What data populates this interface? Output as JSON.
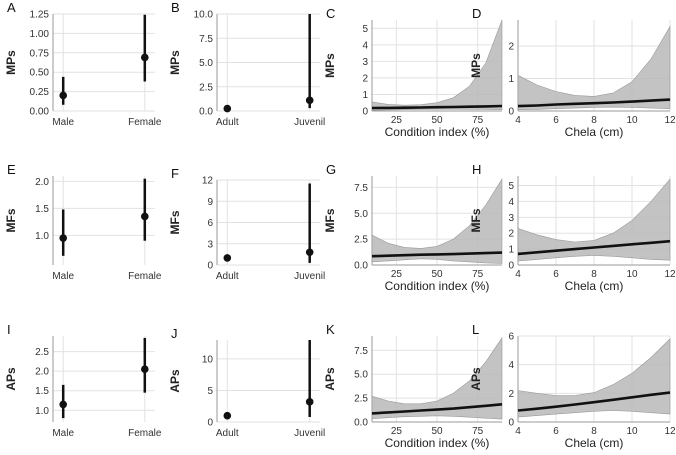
{
  "figure": {
    "row_labels": [
      "MPs",
      "MFs",
      "APs"
    ]
  },
  "chart_data": [
    {
      "id": "A",
      "type": "pointrange",
      "ylabel": "MPs",
      "xlabel": "",
      "categories": [
        "Male",
        "Female"
      ],
      "values": [
        0.2,
        0.69
      ],
      "lower": [
        0.08,
        0.38
      ],
      "upper": [
        0.44,
        1.24
      ],
      "ylim": [
        0,
        1.25
      ],
      "yticks": [
        {
          "v": 0,
          "t": "0.00"
        },
        {
          "v": 0.25,
          "t": "0.25"
        },
        {
          "v": 0.5,
          "t": "0.50"
        },
        {
          "v": 0.75,
          "t": "0.75"
        },
        {
          "v": 1.0,
          "t": "1.00"
        },
        {
          "v": 1.25,
          "t": "1.25"
        }
      ]
    },
    {
      "id": "B",
      "type": "pointrange",
      "ylabel": "MPs",
      "xlabel": "",
      "categories": [
        "Adult",
        "Juvenil"
      ],
      "values": [
        0.25,
        1.1
      ],
      "lower": [
        0.05,
        0.3
      ],
      "upper": [
        0.6,
        10.0
      ],
      "ylim": [
        0,
        10.0
      ],
      "yticks": [
        {
          "v": 0,
          "t": "0.0"
        },
        {
          "v": 2.5,
          "t": "2.5"
        },
        {
          "v": 5.0,
          "t": "5.0"
        },
        {
          "v": 7.5,
          "t": "7.5"
        },
        {
          "v": 10.0,
          "t": "10.0"
        }
      ]
    },
    {
      "id": "C",
      "type": "line",
      "ylabel": "MPs",
      "xlabel": "Condition index (%)",
      "xlim": [
        10,
        90
      ],
      "ylim": [
        0,
        5.5
      ],
      "xticks": [
        {
          "v": 25,
          "t": "25"
        },
        {
          "v": 50,
          "t": "50"
        },
        {
          "v": 75,
          "t": "75"
        }
      ],
      "yticks": [
        {
          "v": 0,
          "t": "0"
        },
        {
          "v": 1,
          "t": "1"
        },
        {
          "v": 2,
          "t": "2"
        },
        {
          "v": 3,
          "t": "3"
        },
        {
          "v": 4,
          "t": "4"
        },
        {
          "v": 5,
          "t": "5"
        }
      ],
      "x": [
        10,
        20,
        30,
        40,
        50,
        60,
        70,
        80,
        90
      ],
      "fit": [
        0.18,
        0.19,
        0.2,
        0.21,
        0.23,
        0.24,
        0.26,
        0.28,
        0.3
      ],
      "lower": [
        0.05,
        0.06,
        0.08,
        0.1,
        0.11,
        0.11,
        0.1,
        0.09,
        0.08
      ],
      "upper": [
        0.55,
        0.4,
        0.35,
        0.38,
        0.5,
        0.8,
        1.5,
        2.9,
        5.5
      ]
    },
    {
      "id": "D",
      "type": "line",
      "ylabel": "MPs",
      "xlabel": "Chela (cm)",
      "xlim": [
        4,
        12
      ],
      "ylim": [
        0,
        2.8
      ],
      "xticks": [
        {
          "v": 4,
          "t": "4"
        },
        {
          "v": 6,
          "t": "6"
        },
        {
          "v": 8,
          "t": "8"
        },
        {
          "v": 10,
          "t": "10"
        },
        {
          "v": 12,
          "t": "12"
        }
      ],
      "yticks": [
        {
          "v": 0,
          "t": "0"
        },
        {
          "v": 1,
          "t": "1"
        },
        {
          "v": 2,
          "t": "2"
        }
      ],
      "x": [
        4,
        5,
        6,
        7,
        8,
        9,
        10,
        11,
        12
      ],
      "fit": [
        0.15,
        0.17,
        0.2,
        0.22,
        0.24,
        0.26,
        0.29,
        0.32,
        0.35
      ],
      "lower": [
        0.04,
        0.05,
        0.07,
        0.09,
        0.11,
        0.12,
        0.11,
        0.09,
        0.07
      ],
      "upper": [
        1.1,
        0.8,
        0.6,
        0.48,
        0.45,
        0.55,
        0.9,
        1.6,
        2.6
      ]
    },
    {
      "id": "E",
      "type": "pointrange",
      "ylabel": "MFs",
      "xlabel": "",
      "categories": [
        "Male",
        "Female"
      ],
      "values": [
        0.95,
        1.35
      ],
      "lower": [
        0.62,
        0.9
      ],
      "upper": [
        1.48,
        2.05
      ],
      "ylim": [
        0.45,
        2.1
      ],
      "yticks": [
        {
          "v": 1.0,
          "t": "1.0"
        },
        {
          "v": 1.5,
          "t": "1.5"
        },
        {
          "v": 2.0,
          "t": "2.0"
        }
      ]
    },
    {
      "id": "F",
      "type": "pointrange",
      "ylabel": "MFs",
      "xlabel": "",
      "categories": [
        "Adult",
        "Juvenil"
      ],
      "values": [
        1.0,
        1.8
      ],
      "lower": [
        0.7,
        0.3
      ],
      "upper": [
        1.4,
        11.5
      ],
      "ylim": [
        0,
        12
      ],
      "yticks": [
        {
          "v": 0,
          "t": "0"
        },
        {
          "v": 3,
          "t": "3"
        },
        {
          "v": 6,
          "t": "6"
        },
        {
          "v": 9,
          "t": "9"
        },
        {
          "v": 12,
          "t": "12"
        }
      ]
    },
    {
      "id": "G",
      "type": "line",
      "ylabel": "MFs",
      "xlabel": "Condition index (%)",
      "xlim": [
        10,
        90
      ],
      "ylim": [
        0,
        8.6
      ],
      "xticks": [
        {
          "v": 25,
          "t": "25"
        },
        {
          "v": 50,
          "t": "50"
        },
        {
          "v": 75,
          "t": "75"
        }
      ],
      "yticks": [
        {
          "v": 0,
          "t": "0.0"
        },
        {
          "v": 2.5,
          "t": "2.5"
        },
        {
          "v": 5,
          "t": "5.0"
        },
        {
          "v": 7.5,
          "t": "7.5"
        }
      ],
      "x": [
        10,
        20,
        30,
        40,
        50,
        60,
        70,
        80,
        90
      ],
      "fit": [
        0.85,
        0.9,
        0.95,
        1.0,
        1.02,
        1.05,
        1.1,
        1.15,
        1.2
      ],
      "lower": [
        0.3,
        0.4,
        0.5,
        0.6,
        0.55,
        0.4,
        0.3,
        0.2,
        0.15
      ],
      "upper": [
        2.9,
        2.1,
        1.7,
        1.6,
        1.8,
        2.5,
        3.8,
        5.8,
        8.3
      ]
    },
    {
      "id": "H",
      "type": "line",
      "ylabel": "MFs",
      "xlabel": "Chela (cm)",
      "xlim": [
        4,
        12
      ],
      "ylim": [
        0,
        5.6
      ],
      "xticks": [
        {
          "v": 4,
          "t": "4"
        },
        {
          "v": 6,
          "t": "6"
        },
        {
          "v": 8,
          "t": "8"
        },
        {
          "v": 10,
          "t": "10"
        },
        {
          "v": 12,
          "t": "12"
        }
      ],
      "yticks": [
        {
          "v": 0,
          "t": "0"
        },
        {
          "v": 1,
          "t": "1"
        },
        {
          "v": 2,
          "t": "2"
        },
        {
          "v": 3,
          "t": "3"
        },
        {
          "v": 4,
          "t": "4"
        },
        {
          "v": 5,
          "t": "5"
        }
      ],
      "x": [
        4,
        5,
        6,
        7,
        8,
        9,
        10,
        11,
        12
      ],
      "fit": [
        0.7,
        0.8,
        0.9,
        1.0,
        1.1,
        1.2,
        1.3,
        1.4,
        1.5
      ],
      "lower": [
        0.25,
        0.35,
        0.45,
        0.55,
        0.6,
        0.55,
        0.45,
        0.35,
        0.3
      ],
      "upper": [
        2.3,
        1.9,
        1.6,
        1.45,
        1.55,
        2.0,
        2.8,
        4.0,
        5.4
      ]
    },
    {
      "id": "I",
      "type": "pointrange",
      "ylabel": "APs",
      "xlabel": "",
      "categories": [
        "Male",
        "Female"
      ],
      "values": [
        1.15,
        2.05
      ],
      "lower": [
        0.8,
        1.45
      ],
      "upper": [
        1.65,
        2.85
      ],
      "ylim": [
        0.7,
        2.9
      ],
      "yticks": [
        {
          "v": 1.0,
          "t": "1.0"
        },
        {
          "v": 1.5,
          "t": "1.5"
        },
        {
          "v": 2.0,
          "t": "2.0"
        },
        {
          "v": 2.5,
          "t": "2.5"
        }
      ]
    },
    {
      "id": "J",
      "type": "pointrange",
      "ylabel": "APs",
      "xlabel": "",
      "categories": [
        "Adult",
        "Juvenil"
      ],
      "values": [
        1.0,
        3.2
      ],
      "lower": [
        0.7,
        0.8
      ],
      "upper": [
        1.3,
        13.0
      ],
      "ylim": [
        0,
        13
      ],
      "yticks": [
        {
          "v": 0,
          "t": "0"
        },
        {
          "v": 5,
          "t": "5"
        },
        {
          "v": 10,
          "t": "10"
        }
      ]
    },
    {
      "id": "K",
      "type": "line",
      "ylabel": "APs",
      "xlabel": "Condition index (%)",
      "xlim": [
        10,
        90
      ],
      "ylim": [
        0,
        9
      ],
      "xticks": [
        {
          "v": 25,
          "t": "25"
        },
        {
          "v": 50,
          "t": "50"
        },
        {
          "v": 75,
          "t": "75"
        }
      ],
      "yticks": [
        {
          "v": 0,
          "t": "0.0"
        },
        {
          "v": 2.5,
          "t": "2.5"
        },
        {
          "v": 5,
          "t": "5.0"
        },
        {
          "v": 7.5,
          "t": "7.5"
        }
      ],
      "x": [
        10,
        20,
        30,
        40,
        50,
        60,
        70,
        80,
        90
      ],
      "fit": [
        0.9,
        1.0,
        1.1,
        1.2,
        1.3,
        1.4,
        1.55,
        1.7,
        1.85
      ],
      "lower": [
        0.35,
        0.45,
        0.55,
        0.6,
        0.65,
        0.6,
        0.5,
        0.4,
        0.3
      ],
      "upper": [
        2.7,
        2.2,
        1.9,
        1.9,
        2.2,
        3.0,
        4.3,
        6.3,
        8.8
      ]
    },
    {
      "id": "L",
      "type": "line",
      "ylabel": "APs",
      "xlabel": "Chela (cm)",
      "xlim": [
        4,
        12
      ],
      "ylim": [
        0,
        6
      ],
      "xticks": [
        {
          "v": 4,
          "t": "4"
        },
        {
          "v": 6,
          "t": "6"
        },
        {
          "v": 8,
          "t": "8"
        },
        {
          "v": 10,
          "t": "10"
        },
        {
          "v": 12,
          "t": "12"
        }
      ],
      "yticks": [
        {
          "v": 0,
          "t": "0"
        },
        {
          "v": 2,
          "t": "2"
        },
        {
          "v": 4,
          "t": "4"
        },
        {
          "v": 6,
          "t": "6"
        }
      ],
      "x": [
        4,
        5,
        6,
        7,
        8,
        9,
        10,
        11,
        12
      ],
      "fit": [
        0.8,
        0.93,
        1.07,
        1.22,
        1.38,
        1.55,
        1.72,
        1.9,
        2.05
      ],
      "lower": [
        0.35,
        0.45,
        0.55,
        0.65,
        0.75,
        0.8,
        0.75,
        0.65,
        0.55
      ],
      "upper": [
        2.2,
        2.0,
        1.85,
        1.85,
        2.05,
        2.6,
        3.4,
        4.5,
        5.8
      ]
    }
  ]
}
